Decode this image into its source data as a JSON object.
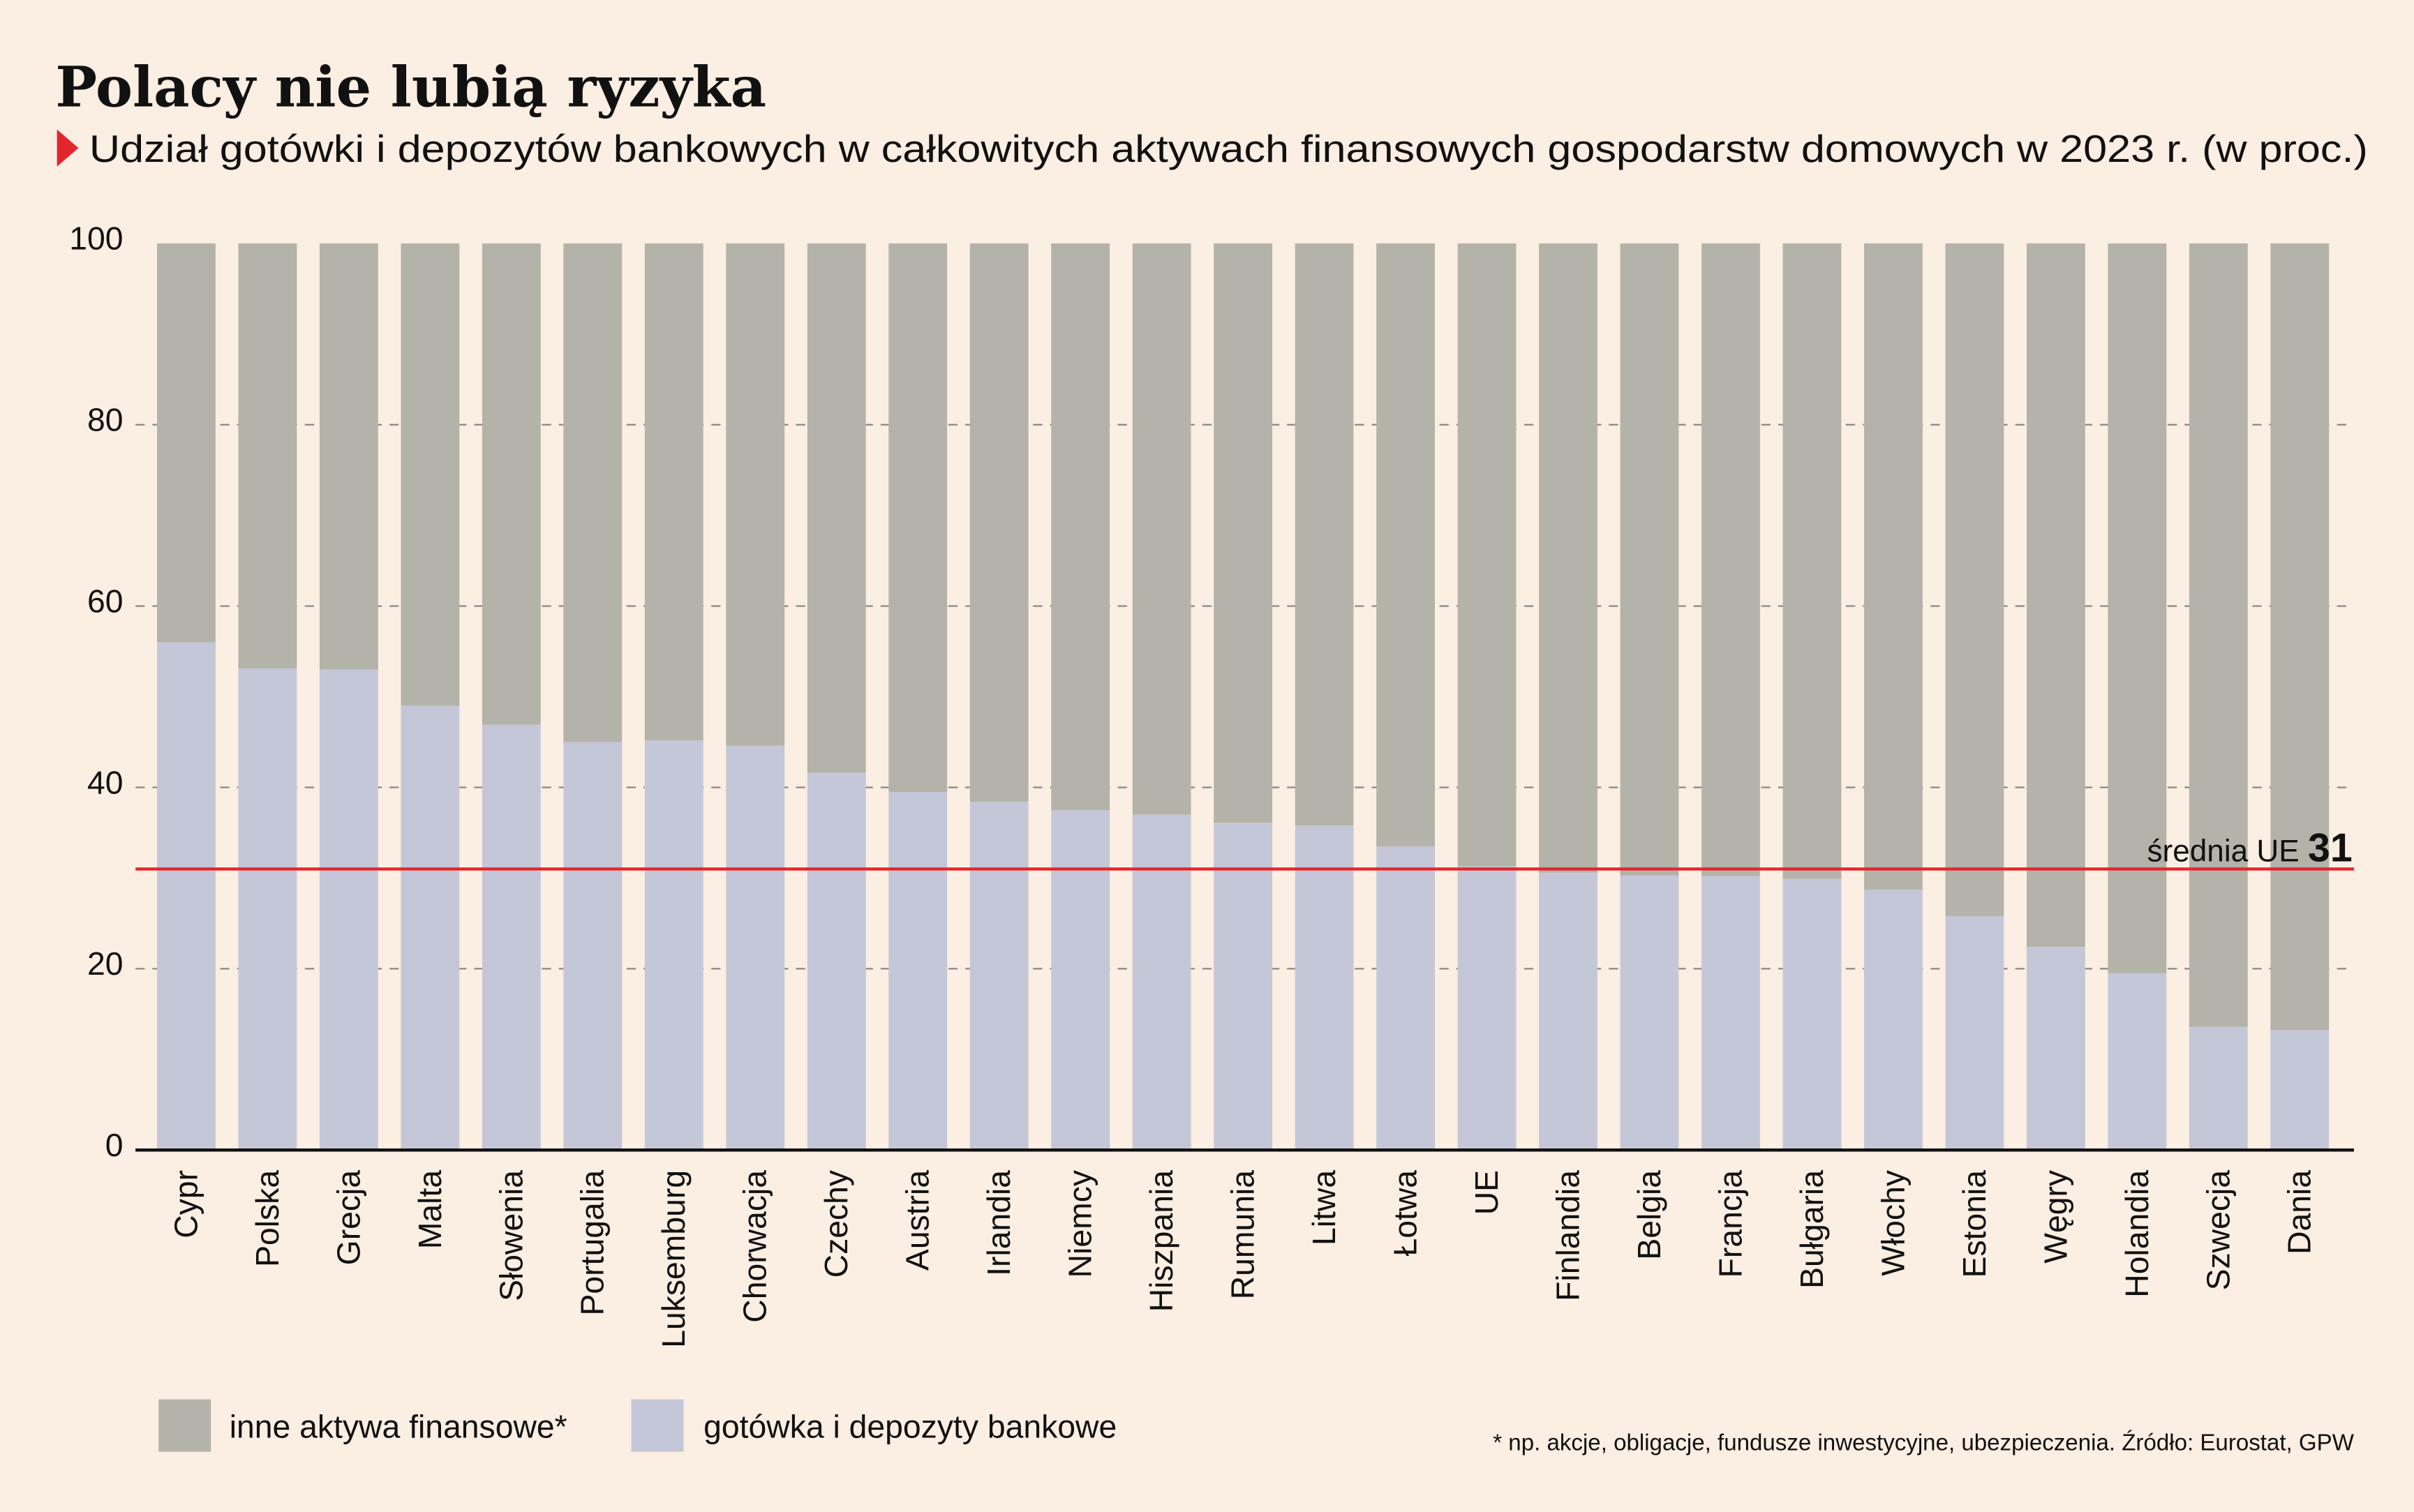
{
  "title": "Polacy nie lubią ryzyka",
  "subtitle": "Udział gotówki i depozytów bankowych w całkowitych aktywach finansowych gospodarstw domowych w 2023 r. (w proc.)",
  "colors": {
    "background": "#fbeee2",
    "other_assets": "#b4b3aa",
    "cash_deposits": "#c4c7d7",
    "eu_average_line": "#e3262d",
    "marker": "#e3262d",
    "text": "#111111",
    "grid": "#888888"
  },
  "reference_line": {
    "label": "średnia UE",
    "value_label": "31",
    "value": 31
  },
  "legend": [
    {
      "key": "other",
      "label": "inne aktywa finansowe*"
    },
    {
      "key": "cash",
      "label": "gotówka i depozyty bankowe"
    }
  ],
  "footnote": "* np. akcje, obligacje, fundusze inwestycyjne, ubezpieczenia. Źródło: Eurostat, GPW",
  "chart_data": {
    "type": "bar",
    "stacked": true,
    "ylim": [
      0,
      100
    ],
    "yticks": [
      0,
      20,
      40,
      60,
      80,
      100
    ],
    "grid": "dashed horizontal",
    "legend_position": "bottom-left",
    "categories": [
      "Cypr",
      "Polska",
      "Grecja",
      "Malta",
      "Słowenia",
      "Portugalia",
      "Luksemburg",
      "Chorwacja",
      "Czechy",
      "Austria",
      "Irlandia",
      "Niemcy",
      "Hiszpania",
      "Rumunia",
      "Litwa",
      "Łotwa",
      "UE",
      "Finlandia",
      "Belgia",
      "Francja",
      "Bułgaria",
      "Włochy",
      "Estonia",
      "Węgry",
      "Holandia",
      "Szwecja",
      "Dania"
    ],
    "series": [
      {
        "name": "gotówka i depozyty bankowe",
        "values": [
          56,
          53.1,
          53,
          49,
          46.9,
          45,
          45.2,
          44.6,
          41.6,
          39.5,
          38.4,
          37.5,
          37,
          36.1,
          35.8,
          33.5,
          31.3,
          30.6,
          30.3,
          30.2,
          29.9,
          28.7,
          25.8,
          22.4,
          19.5,
          13.6,
          13.2
        ]
      },
      {
        "name": "inne aktywa finansowe*",
        "values": [
          44,
          46.9,
          47,
          51,
          53.1,
          55,
          54.8,
          55.4,
          58.4,
          60.5,
          61.6,
          62.5,
          63,
          63.9,
          64.2,
          66.5,
          68.7,
          69.4,
          69.7,
          69.8,
          70.1,
          71.3,
          74.2,
          77.6,
          80.5,
          86.4,
          86.8
        ]
      }
    ]
  }
}
